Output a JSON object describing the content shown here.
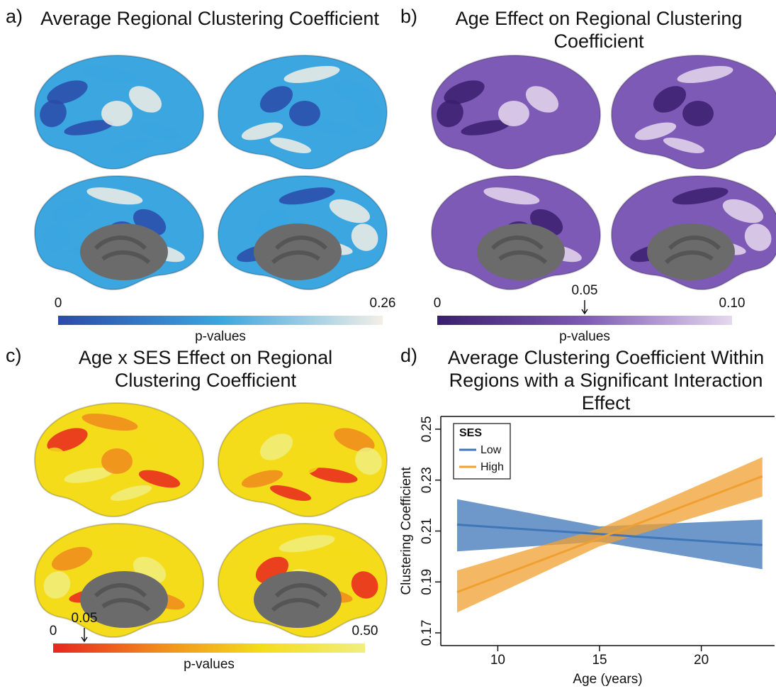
{
  "panels": [
    {
      "label": "a)",
      "title": "Average Regional Clustering Coefficient",
      "colorbar": {
        "label": "p-values",
        "lim": [
          0,
          0.26
        ],
        "ticks": [
          0,
          0.26
        ],
        "colors": [
          "#2b4aa8",
          "#3ba6e0",
          "#f3efe6"
        ]
      }
    },
    {
      "label": "b)",
      "title": "Age Effect on Regional Clustering Coefficient",
      "colorbar": {
        "label": "p-values",
        "lim": [
          0,
          0.1
        ],
        "ticks": [
          0,
          0.05,
          {
            "value": 0.1,
            "label": "0.10"
          }
        ],
        "colors": [
          "#3a1f6e",
          "#7d5ab5",
          "#e6d8ee"
        ]
      }
    },
    {
      "label": "c)",
      "title": "Age x SES Effect on Regional Clustering Coefficient",
      "colorbar": {
        "label": "p-values",
        "lim": [
          0,
          0.5
        ],
        "ticks": [
          0,
          0.05,
          {
            "value": 0.5,
            "label": "0.50"
          }
        ],
        "colors": [
          "#e8251e",
          "#f08a1e",
          "#f5dc1a",
          "#f0ef80"
        ]
      }
    }
  ],
  "chart_data": {
    "type": "line",
    "label": "d)",
    "title": "Average Clustering Coefficient Within Regions with a Significant Interaction Effect",
    "xlabel": "Age (years)",
    "ylabel": "Clustering Coefficient",
    "x": [
      8,
      15,
      23
    ],
    "xlim": [
      7.2,
      23.6
    ],
    "ylim": [
      0.165,
      0.255
    ],
    "xticks": [
      10,
      15,
      20
    ],
    "yticks": [
      0.17,
      0.19,
      0.21,
      0.23,
      0.25
    ],
    "legend_title": "SES",
    "legend": "upper left",
    "series": [
      {
        "name": "Low",
        "color": "#3f76b8",
        "values": [
          0.2125,
          0.2088,
          0.2045
        ],
        "lower": [
          0.202,
          0.2058,
          0.195
        ],
        "upper": [
          0.2225,
          0.2118,
          0.2145
        ]
      },
      {
        "name": "High",
        "color": "#f0a030",
        "values": [
          0.186,
          0.2072,
          0.2315
        ],
        "lower": [
          0.178,
          0.204,
          0.2235
        ],
        "upper": [
          0.1945,
          0.211,
          0.239
        ]
      }
    ]
  }
}
